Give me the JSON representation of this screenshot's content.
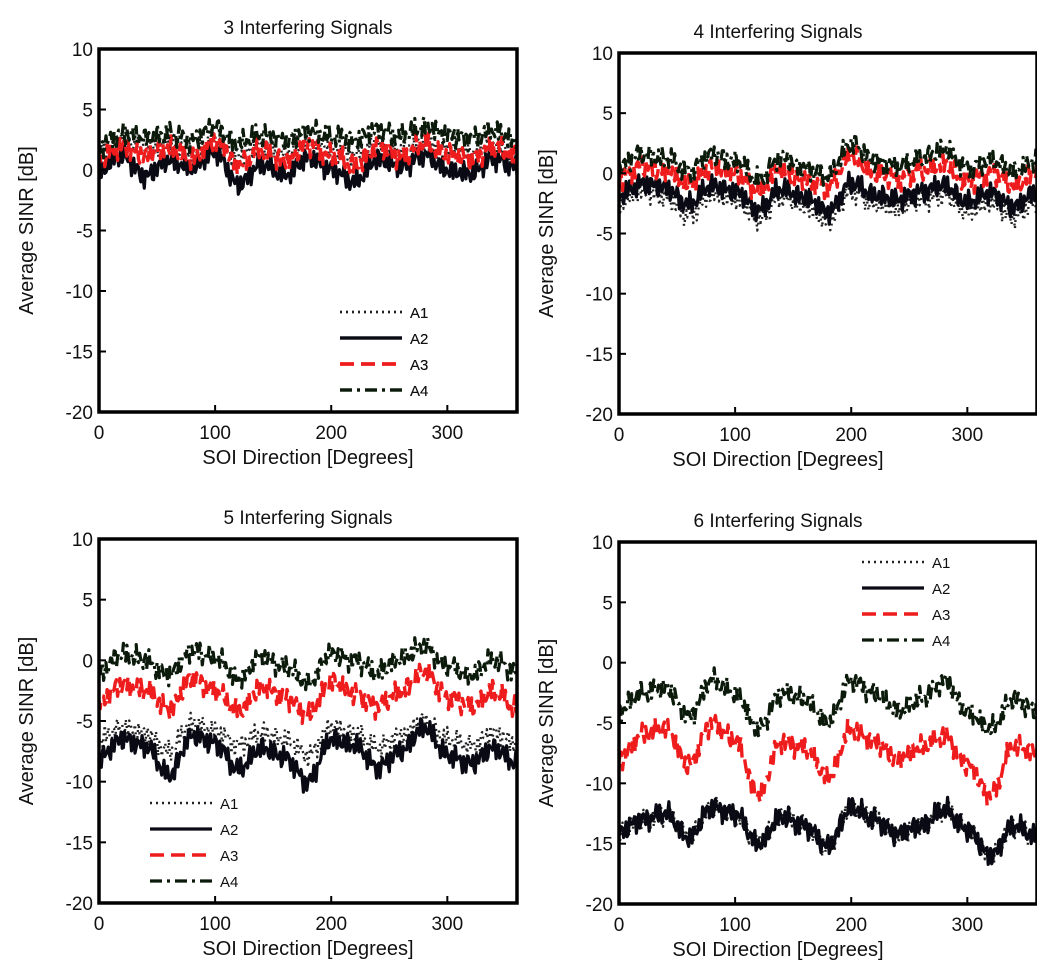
{
  "figure": {
    "legend_entries": [
      "A1",
      "A2",
      "A3",
      "A4"
    ],
    "series_styles": {
      "A1": {
        "color": "#222222",
        "dash": "dotted"
      },
      "A2": {
        "color": "#0a0a14",
        "dash": "solid"
      },
      "A3": {
        "color": "#ee1c1c",
        "dash": "dashed"
      },
      "A4": {
        "color": "#0b1a0b",
        "dash": "dash-dot"
      }
    }
  },
  "chart_data": [
    {
      "type": "line",
      "title": "3 Interfering Signals",
      "xlabel": "SOI Direction [Degrees]",
      "ylabel": "Average SINR [dB]",
      "xlim": [
        0,
        360
      ],
      "ylim": [
        -20,
        10
      ],
      "xticks": [
        0,
        100,
        200,
        300
      ],
      "yticks": [
        10,
        5,
        0,
        -5,
        -10,
        -15,
        -20
      ],
      "grid": false,
      "legend_position": "lower-right",
      "x": [
        0,
        20,
        40,
        60,
        80,
        100,
        120,
        140,
        160,
        180,
        200,
        220,
        240,
        260,
        280,
        300,
        320,
        340,
        360
      ],
      "series": [
        {
          "name": "A1",
          "values": [
            1.5,
            2.4,
            1.9,
            2.2,
            1.6,
            2.5,
            1.2,
            2.0,
            1.4,
            2.3,
            1.7,
            1.3,
            2.1,
            1.6,
            2.4,
            1.8,
            1.5,
            2.2,
            1.5
          ]
        },
        {
          "name": "A2",
          "values": [
            0.0,
            1.2,
            -0.5,
            0.8,
            0.2,
            1.5,
            -1.2,
            0.5,
            -0.4,
            1.0,
            0.1,
            -1.0,
            0.9,
            0.3,
            1.3,
            0.0,
            -0.3,
            1.0,
            0.2
          ]
        },
        {
          "name": "A3",
          "values": [
            1.0,
            2.0,
            1.2,
            1.8,
            1.0,
            2.4,
            0.5,
            1.6,
            0.8,
            2.0,
            1.2,
            0.4,
            1.9,
            1.1,
            2.2,
            1.3,
            0.9,
            1.9,
            1.2
          ]
        },
        {
          "name": "A4",
          "values": [
            2.0,
            3.0,
            2.6,
            3.0,
            2.5,
            3.5,
            2.2,
            3.0,
            2.4,
            3.2,
            2.8,
            2.5,
            3.3,
            2.8,
            3.6,
            2.9,
            2.6,
            3.2,
            2.4
          ]
        }
      ]
    },
    {
      "type": "line",
      "title": "4 Interfering Signals",
      "xlabel": "SOI Direction [Degrees]",
      "ylabel": "Average SINR [dB]",
      "xlim": [
        0,
        360
      ],
      "ylim": [
        -20,
        10
      ],
      "xticks": [
        0,
        100,
        200,
        300
      ],
      "yticks": [
        10,
        5,
        0,
        -5,
        -10,
        -15,
        -20
      ],
      "grid": false,
      "legend_position": "lower-right",
      "x": [
        0,
        20,
        40,
        60,
        80,
        100,
        120,
        140,
        160,
        180,
        200,
        220,
        240,
        260,
        280,
        300,
        320,
        340,
        360
      ],
      "series": [
        {
          "name": "A1",
          "values": [
            -2.5,
            -1.5,
            -2.0,
            -3.5,
            -1.8,
            -2.2,
            -3.8,
            -2.0,
            -2.8,
            -4.0,
            -1.5,
            -2.6,
            -3.0,
            -2.2,
            -1.8,
            -3.2,
            -2.5,
            -3.6,
            -2.4
          ]
        },
        {
          "name": "A2",
          "values": [
            -1.8,
            -0.8,
            -1.2,
            -2.6,
            -1.0,
            -1.5,
            -3.0,
            -1.3,
            -2.0,
            -3.2,
            -0.8,
            -1.8,
            -2.2,
            -1.5,
            -1.0,
            -2.4,
            -1.6,
            -2.8,
            -1.5
          ]
        },
        {
          "name": "A3",
          "values": [
            -0.5,
            0.6,
            0.2,
            -1.0,
            0.5,
            0.0,
            -1.5,
            0.3,
            -0.6,
            -1.2,
            1.5,
            0.0,
            -0.5,
            0.2,
            0.8,
            -0.8,
            0.0,
            -1.0,
            0.1
          ]
        },
        {
          "name": "A4",
          "values": [
            0.5,
            1.6,
            1.2,
            0.2,
            1.5,
            1.0,
            -0.5,
            1.3,
            0.4,
            -0.2,
            2.5,
            1.0,
            0.6,
            1.2,
            2.0,
            0.4,
            1.0,
            0.2,
            1.0
          ]
        }
      ]
    },
    {
      "type": "line",
      "title": "5 Interfering Signals",
      "xlabel": "SOI Direction [Degrees]",
      "ylabel": "Average SINR [dB]",
      "xlim": [
        0,
        360
      ],
      "ylim": [
        -20,
        10
      ],
      "xticks": [
        0,
        100,
        200,
        300
      ],
      "yticks": [
        10,
        5,
        0,
        -5,
        -10,
        -15,
        -20
      ],
      "grid": false,
      "legend_position": "lower-left",
      "x": [
        0,
        20,
        40,
        60,
        80,
        100,
        120,
        140,
        160,
        180,
        200,
        220,
        240,
        260,
        280,
        300,
        320,
        340,
        360
      ],
      "series": [
        {
          "name": "A1",
          "values": [
            -6.5,
            -5.5,
            -6.0,
            -7.5,
            -5.2,
            -5.8,
            -7.0,
            -6.0,
            -6.5,
            -7.8,
            -5.5,
            -6.0,
            -7.2,
            -6.2,
            -5.0,
            -6.5,
            -7.0,
            -6.0,
            -6.8
          ]
        },
        {
          "name": "A2",
          "values": [
            -8.0,
            -6.5,
            -7.0,
            -9.5,
            -6.2,
            -6.8,
            -9.0,
            -7.2,
            -8.0,
            -10.0,
            -6.5,
            -7.0,
            -8.8,
            -7.5,
            -5.5,
            -7.8,
            -8.5,
            -7.2,
            -8.5
          ]
        },
        {
          "name": "A3",
          "values": [
            -3.5,
            -2.0,
            -2.5,
            -4.0,
            -1.5,
            -2.5,
            -4.2,
            -2.2,
            -3.0,
            -4.5,
            -1.8,
            -2.8,
            -3.8,
            -2.5,
            -1.0,
            -3.0,
            -3.8,
            -2.5,
            -4.0
          ]
        },
        {
          "name": "A4",
          "values": [
            -1.0,
            0.5,
            0.0,
            -1.2,
            0.8,
            0.2,
            -1.5,
            0.3,
            -0.5,
            -1.8,
            0.5,
            0.0,
            -1.0,
            0.2,
            1.2,
            -0.5,
            -1.2,
            0.0,
            -1.0
          ]
        }
      ]
    },
    {
      "type": "line",
      "title": "6 Interfering Signals",
      "xlabel": "SOI Direction [Degrees]",
      "ylabel": "Average SINR [dB]",
      "xlim": [
        0,
        360
      ],
      "ylim": [
        -20,
        10
      ],
      "xticks": [
        0,
        100,
        200,
        300
      ],
      "yticks": [
        10,
        5,
        0,
        -5,
        -10,
        -15,
        -20
      ],
      "grid": false,
      "legend_position": "upper-right",
      "x": [
        0,
        20,
        40,
        60,
        80,
        100,
        120,
        140,
        160,
        180,
        200,
        220,
        240,
        260,
        280,
        300,
        320,
        340,
        360
      ],
      "series": [
        {
          "name": "A1",
          "values": [
            -14.0,
            -13.0,
            -12.5,
            -14.5,
            -12.0,
            -12.5,
            -15.0,
            -12.8,
            -13.5,
            -15.2,
            -12.0,
            -13.0,
            -14.2,
            -13.5,
            -12.2,
            -13.8,
            -16.0,
            -13.5,
            -14.5
          ]
        },
        {
          "name": "A2",
          "values": [
            -14.0,
            -13.0,
            -12.5,
            -14.5,
            -12.0,
            -12.5,
            -15.0,
            -12.8,
            -13.5,
            -15.2,
            -12.0,
            -13.0,
            -14.2,
            -13.5,
            -12.2,
            -13.8,
            -16.0,
            -13.5,
            -14.5
          ]
        },
        {
          "name": "A3",
          "values": [
            -8.0,
            -6.0,
            -5.5,
            -8.5,
            -5.0,
            -6.5,
            -11.0,
            -6.5,
            -7.0,
            -9.5,
            -5.5,
            -6.5,
            -8.0,
            -7.0,
            -6.0,
            -8.5,
            -11.0,
            -7.0,
            -7.5
          ]
        },
        {
          "name": "A4",
          "values": [
            -4.0,
            -2.5,
            -2.0,
            -4.5,
            -1.5,
            -2.5,
            -5.5,
            -2.5,
            -3.0,
            -5.0,
            -1.5,
            -2.5,
            -4.0,
            -3.0,
            -1.5,
            -4.0,
            -5.5,
            -3.0,
            -4.0
          ]
        }
      ]
    }
  ]
}
